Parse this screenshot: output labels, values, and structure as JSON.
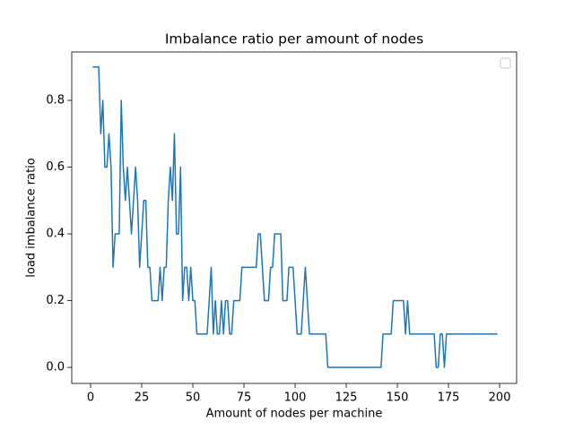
{
  "chart_data": {
    "type": "line",
    "title": "Imbalance ratio per amount of nodes",
    "xlabel": "Amount of nodes per machine",
    "ylabel": "load imbalance ratio",
    "x": [
      1,
      2,
      3,
      4,
      5,
      6,
      7,
      8,
      9,
      10,
      11,
      12,
      13,
      14,
      15,
      16,
      17,
      18,
      19,
      20,
      21,
      22,
      23,
      24,
      25,
      26,
      27,
      28,
      29,
      30,
      31,
      32,
      33,
      34,
      35,
      36,
      37,
      38,
      39,
      40,
      41,
      42,
      43,
      44,
      45,
      46,
      47,
      48,
      49,
      50,
      51,
      52,
      53,
      54,
      55,
      56,
      57,
      58,
      59,
      60,
      61,
      62,
      63,
      64,
      65,
      66,
      67,
      68,
      69,
      70,
      71,
      72,
      73,
      74,
      75,
      76,
      77,
      78,
      79,
      80,
      81,
      82,
      83,
      84,
      85,
      86,
      87,
      88,
      89,
      90,
      91,
      92,
      93,
      94,
      95,
      96,
      97,
      98,
      99,
      100,
      101,
      102,
      103,
      104,
      105,
      106,
      107,
      108,
      109,
      110,
      111,
      112,
      113,
      114,
      115,
      116,
      117,
      118,
      119,
      120,
      121,
      122,
      123,
      124,
      125,
      126,
      127,
      128,
      129,
      130,
      131,
      132,
      133,
      134,
      135,
      136,
      137,
      138,
      139,
      140,
      141,
      142,
      143,
      144,
      145,
      146,
      147,
      148,
      149,
      150,
      151,
      152,
      153,
      154,
      155,
      156,
      157,
      158,
      159,
      160,
      161,
      162,
      163,
      164,
      165,
      166,
      167,
      168,
      169,
      170,
      171,
      172,
      173,
      174,
      175,
      176,
      177,
      178,
      179,
      180,
      181,
      182,
      183,
      184,
      185,
      186,
      187,
      188,
      189,
      190,
      191,
      192,
      193,
      194,
      195,
      196,
      197,
      198,
      199
    ],
    "values": [
      0.9,
      0.9,
      0.9,
      0.9,
      0.7,
      0.8,
      0.6,
      0.6,
      0.7,
      0.6,
      0.3,
      0.4,
      0.4,
      0.4,
      0.8,
      0.6,
      0.5,
      0.6,
      0.5,
      0.4,
      0.5,
      0.6,
      0.5,
      0.3,
      0.4,
      0.5,
      0.5,
      0.3,
      0.3,
      0.2,
      0.2,
      0.2,
      0.2,
      0.3,
      0.2,
      0.3,
      0.3,
      0.5,
      0.6,
      0.5,
      0.7,
      0.4,
      0.4,
      0.6,
      0.2,
      0.3,
      0.3,
      0.2,
      0.3,
      0.2,
      0.2,
      0.1,
      0.1,
      0.1,
      0.1,
      0.1,
      0.1,
      0.2,
      0.3,
      0.1,
      0.2,
      0.1,
      0.1,
      0.2,
      0.1,
      0.2,
      0.2,
      0.1,
      0.1,
      0.2,
      0.2,
      0.2,
      0.2,
      0.3,
      0.3,
      0.3,
      0.3,
      0.3,
      0.3,
      0.3,
      0.3,
      0.4,
      0.4,
      0.3,
      0.2,
      0.2,
      0.2,
      0.3,
      0.3,
      0.4,
      0.4,
      0.4,
      0.4,
      0.2,
      0.2,
      0.2,
      0.3,
      0.3,
      0.3,
      0.2,
      0.1,
      0.1,
      0.1,
      0.2,
      0.3,
      0.2,
      0.1,
      0.1,
      0.1,
      0.1,
      0.1,
      0.1,
      0.1,
      0.1,
      0.1,
      0,
      0,
      0,
      0,
      0,
      0,
      0,
      0,
      0,
      0,
      0,
      0,
      0,
      0,
      0,
      0,
      0,
      0,
      0,
      0,
      0,
      0,
      0,
      0,
      0,
      0,
      0,
      0.1,
      0.1,
      0.1,
      0.1,
      0.1,
      0.2,
      0.2,
      0.2,
      0.2,
      0.2,
      0.2,
      0.1,
      0.2,
      0.1,
      0.1,
      0.1,
      0.1,
      0.1,
      0.1,
      0.1,
      0.1,
      0.1,
      0.1,
      0.1,
      0.1,
      0.1,
      0,
      0,
      0.1,
      0.1,
      0,
      0.1,
      0.1,
      0.1,
      0.1,
      0.1,
      0.1,
      0.1,
      0.1,
      0.1,
      0.1,
      0.1,
      0.1,
      0.1,
      0.1,
      0.1,
      0.1,
      0.1,
      0.1,
      0.1,
      0.1,
      0.1,
      0.1,
      0.1,
      0.1,
      0.1,
      0.1
    ],
    "color": "#1f77b4",
    "xlim": [
      -9.2,
      208.3
    ],
    "xticks": [
      0,
      25,
      50,
      75,
      100,
      125,
      150,
      175,
      200
    ],
    "ylim": [
      -0.048,
      0.945
    ],
    "yticks": [
      {
        "value": 0,
        "label": "0.0"
      },
      0.2,
      0.4,
      0.6,
      0.8
    ],
    "legend": "upper right"
  }
}
